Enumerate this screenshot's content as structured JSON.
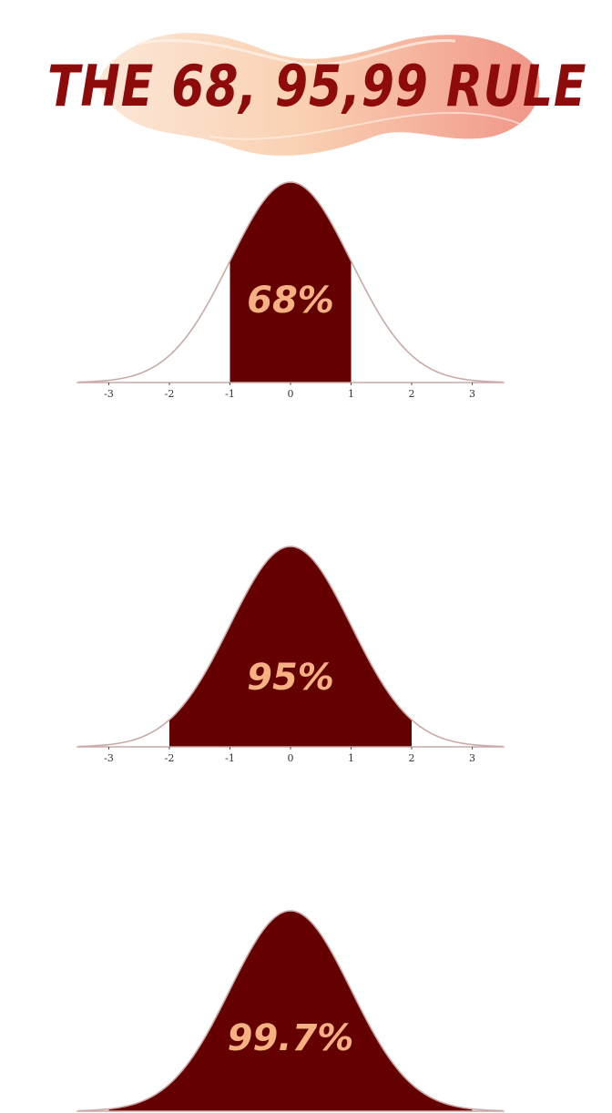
{
  "title": "THE 68, 95,99 RULE",
  "colors": {
    "title": "#8e0b0b",
    "fill": "#650000",
    "curve": "#c9aaa8",
    "label": "#f6b183",
    "brush_light": "#fbd9c0",
    "brush_dark": "#ef8a78"
  },
  "chart_data": [
    {
      "type": "area",
      "curve": "standard-normal",
      "xlim": [
        -3.5,
        3.5
      ],
      "x_ticks": [
        "-3",
        "-2",
        "-1",
        "0",
        "1",
        "2",
        "3"
      ],
      "shaded_range": [
        -1,
        1
      ],
      "label": "68%"
    },
    {
      "type": "area",
      "curve": "standard-normal",
      "xlim": [
        -3.5,
        3.5
      ],
      "x_ticks": [
        "-3",
        "-2",
        "-1",
        "0",
        "1",
        "2",
        "3"
      ],
      "shaded_range": [
        -2,
        2
      ],
      "label": "95%"
    },
    {
      "type": "area",
      "curve": "standard-normal",
      "xlim": [
        -3.5,
        3.5
      ],
      "x_ticks": [],
      "shaded_range": [
        -3,
        3
      ],
      "label": "99.7%"
    }
  ]
}
